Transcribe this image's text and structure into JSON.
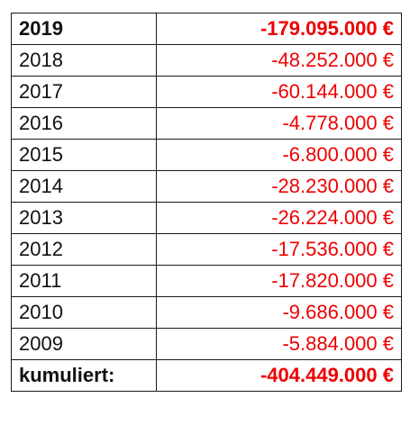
{
  "table": {
    "rows": [
      {
        "year": "2019",
        "amount": "-179.095.000 €",
        "bold": true
      },
      {
        "year": "2018",
        "amount": "-48.252.000 €"
      },
      {
        "year": "2017",
        "amount": "-60.144.000 €"
      },
      {
        "year": "2016",
        "amount": "-4.778.000 €"
      },
      {
        "year": "2015",
        "amount": "-6.800.000 €"
      },
      {
        "year": "2014",
        "amount": "-28.230.000 €"
      },
      {
        "year": "2013",
        "amount": "-26.224.000 €"
      },
      {
        "year": "2012",
        "amount": "-17.536.000 €"
      },
      {
        "year": "2011",
        "amount": "-17.820.000 €"
      },
      {
        "year": "2010",
        "amount": "-9.686.000 €"
      },
      {
        "year": "2009",
        "amount": "-5.884.000 €"
      }
    ],
    "total": {
      "label": "kumuliert:",
      "amount": "-404.449.000 €"
    }
  },
  "colors": {
    "amount": "#ee0000",
    "text": "#111111",
    "border": "#1a1a1a"
  }
}
